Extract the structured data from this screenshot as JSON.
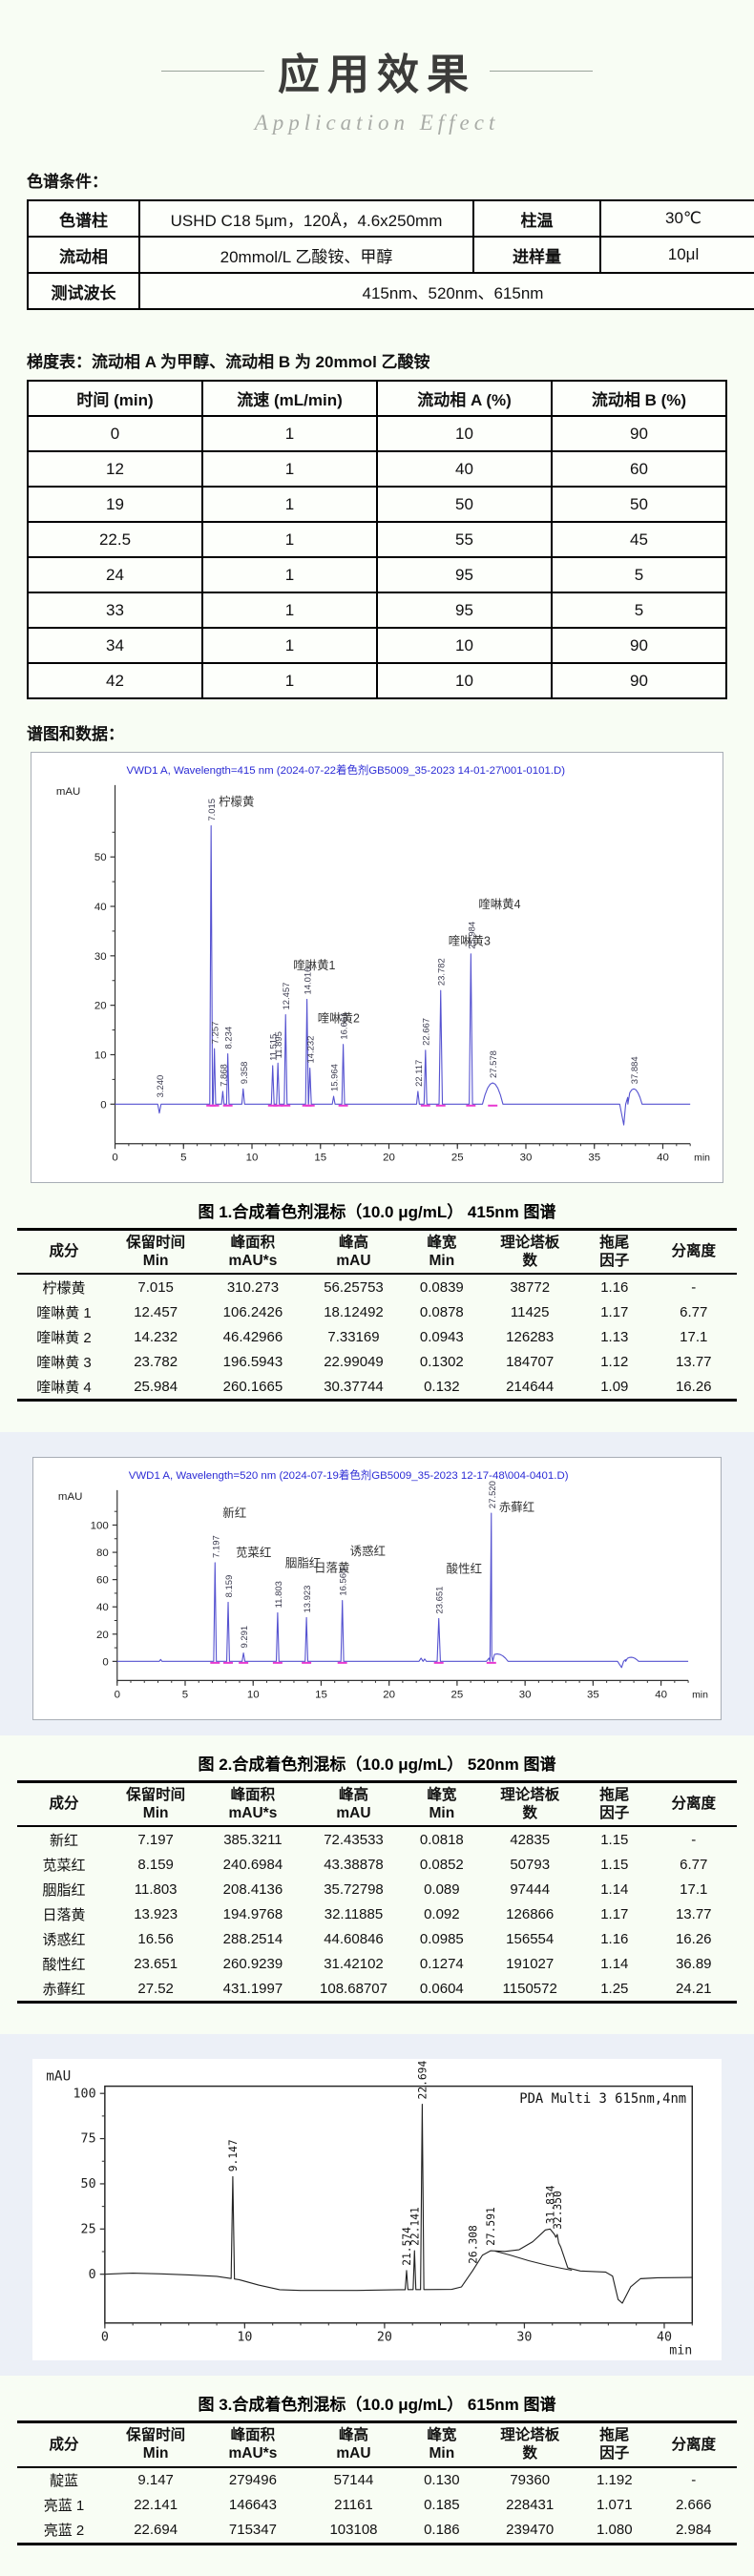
{
  "page": {
    "title": "应用效果",
    "subtitle": "Application Effect"
  },
  "sections": {
    "conditions_label": "色谱条件：",
    "gradient_caption": "梯度表：流动相 A 为甲醇、流动相 B 为 20mmol 乙酸铵",
    "spectra_label": "谱图和数据："
  },
  "conditions_table": {
    "rows": [
      {
        "label1": "色谱柱",
        "value1": "USHD C18 5μm，120Å，4.6x250mm",
        "label2": "柱温",
        "value2": "30℃"
      },
      {
        "label1": "流动相",
        "value1": "20mmol/L 乙酸铵、甲醇",
        "label2": "进样量",
        "value2": "10μl"
      },
      {
        "label1": "测试波长",
        "value1": "415nm、520nm、615nm"
      }
    ]
  },
  "gradient_table": {
    "headers": [
      "时间 (min)",
      "流速 (mL/min)",
      "流动相 A (%)",
      "流动相 B (%)"
    ],
    "rows": [
      [
        "0",
        "1",
        "10",
        "90"
      ],
      [
        "12",
        "1",
        "40",
        "60"
      ],
      [
        "19",
        "1",
        "50",
        "50"
      ],
      [
        "22.5",
        "1",
        "55",
        "45"
      ],
      [
        "24",
        "1",
        "95",
        "5"
      ],
      [
        "33",
        "1",
        "95",
        "5"
      ],
      [
        "34",
        "1",
        "10",
        "90"
      ],
      [
        "42",
        "1",
        "10",
        "90"
      ]
    ]
  },
  "peak_table_headers": [
    [
      "成分",
      ""
    ],
    [
      "保留时间",
      "Min"
    ],
    [
      "峰面积",
      "mAU*s"
    ],
    [
      "峰高",
      "mAU"
    ],
    [
      "峰宽",
      "Min"
    ],
    [
      "理论塔板",
      "数"
    ],
    [
      "拖尾",
      "因子"
    ],
    [
      "分离度",
      ""
    ]
  ],
  "figures": [
    {
      "caption": "图 1.合成着色剂混标（10.0 μg/mL） 415nm 图谱",
      "table": {
        "rows": [
          [
            "柠檬黄",
            "7.015",
            "310.273",
            "56.25753",
            "0.0839",
            "38772",
            "1.16",
            "-"
          ],
          [
            "喹啉黄 1",
            "12.457",
            "106.2426",
            "18.12492",
            "0.0878",
            "11425",
            "1.17",
            "6.77"
          ],
          [
            "喹啉黄 2",
            "14.232",
            "46.42966",
            "7.33169",
            "0.0943",
            "126283",
            "1.13",
            "17.1"
          ],
          [
            "喹啉黄 3",
            "23.782",
            "196.5943",
            "22.99049",
            "0.1302",
            "184707",
            "1.12",
            "13.77"
          ],
          [
            "喹啉黄 4",
            "25.984",
            "260.1665",
            "30.37744",
            "0.132",
            "214644",
            "1.09",
            "16.26"
          ]
        ]
      }
    },
    {
      "caption": "图 2.合成着色剂混标（10.0 μg/mL） 520nm 图谱",
      "table": {
        "rows": [
          [
            "新红",
            "7.197",
            "385.3211",
            "72.43533",
            "0.0818",
            "42835",
            "1.15",
            "-"
          ],
          [
            "苋菜红",
            "8.159",
            "240.6984",
            "43.38878",
            "0.0852",
            "50793",
            "1.15",
            "6.77"
          ],
          [
            "胭脂红",
            "11.803",
            "208.4136",
            "35.72798",
            "0.089",
            "97444",
            "1.14",
            "17.1"
          ],
          [
            "日落黄",
            "13.923",
            "194.9768",
            "32.11885",
            "0.092",
            "126866",
            "1.17",
            "13.77"
          ],
          [
            "诱惑红",
            "16.56",
            "288.2514",
            "44.60846",
            "0.0985",
            "156554",
            "1.16",
            "16.26"
          ],
          [
            "酸性红",
            "23.651",
            "260.9239",
            "31.42102",
            "0.1274",
            "191027",
            "1.14",
            "36.89"
          ],
          [
            "赤藓红",
            "27.52",
            "431.1997",
            "108.68707",
            "0.0604",
            "1150572",
            "1.25",
            "24.21"
          ]
        ]
      }
    },
    {
      "caption": "图 3.合成着色剂混标（10.0 μg/mL） 615nm 图谱",
      "table": {
        "rows": [
          [
            "靛蓝",
            "9.147",
            "279496",
            "57144",
            "0.130",
            "79360",
            "1.192",
            "-"
          ],
          [
            "亮蓝 1",
            "22.141",
            "146643",
            "21161",
            "0.185",
            "228431",
            "1.071",
            "2.666"
          ],
          [
            "亮蓝 2",
            "22.694",
            "715347",
            "103108",
            "0.186",
            "239470",
            "1.080",
            "2.984"
          ]
        ]
      }
    }
  ],
  "chart_data": [
    {
      "type": "line",
      "title": "VWD1 A, Wavelength=415 nm (2024-07-22着色剂GB5009_35-2023  14-01-27\\001-0101.D)",
      "ylabel": "mAU",
      "xlabel": "min",
      "xlim": [
        0,
        42
      ],
      "ylim": [
        -8,
        63
      ],
      "xticks": [
        0,
        5,
        10,
        15,
        20,
        25,
        30,
        35,
        40
      ],
      "yticks": [
        0,
        10,
        20,
        30,
        40,
        50
      ],
      "color": "#5552d0",
      "title_color": "#2b2bd5",
      "marker_color": "#e838d0",
      "peaks": [
        {
          "t": 3.24,
          "h": -1.8,
          "w": 0.12,
          "label": "3.240"
        },
        {
          "t": 7.015,
          "h": 56.3,
          "w": 0.1,
          "label": "7.015",
          "name": "柠檬黄"
        },
        {
          "t": 7.257,
          "h": 11.2,
          "w": 0.09,
          "label": "7.257"
        },
        {
          "t": 7.868,
          "h": 2.6,
          "w": 0.09,
          "label": "7.868"
        },
        {
          "t": 8.234,
          "h": 10.2,
          "w": 0.09,
          "label": "8.234"
        },
        {
          "t": 9.358,
          "h": 3.1,
          "w": 0.1,
          "label": "9.358"
        },
        {
          "t": 11.515,
          "h": 7.8,
          "w": 0.1,
          "label": "11.515"
        },
        {
          "t": 11.895,
          "h": 8.3,
          "w": 0.1,
          "label": "11.895"
        },
        {
          "t": 12.457,
          "h": 18.1,
          "w": 0.1,
          "label": "12.457",
          "name": "喹啉黄1"
        },
        {
          "t": 14.016,
          "h": 21.2,
          "w": 0.1,
          "label": "14.016"
        },
        {
          "t": 14.232,
          "h": 7.3,
          "w": 0.1,
          "label": "14.232",
          "name": "喹啉黄2"
        },
        {
          "t": 15.964,
          "h": 1.6,
          "w": 0.1,
          "label": "15.964"
        },
        {
          "t": 16.661,
          "h": 12.1,
          "w": 0.1,
          "label": "16.661"
        },
        {
          "t": 22.117,
          "h": 2.6,
          "w": 0.1,
          "label": "22.117"
        },
        {
          "t": 22.667,
          "h": 10.9,
          "w": 0.1,
          "label": "22.667"
        },
        {
          "t": 23.782,
          "h": 23.0,
          "w": 0.12,
          "label": "23.782",
          "name": "喹啉黄3"
        },
        {
          "t": 25.984,
          "h": 30.4,
          "w": 0.12,
          "label": "25.984",
          "name": "喹啉黄4"
        },
        {
          "t": 27.578,
          "h": 4.3,
          "w": 0.75,
          "label": "27.578"
        },
        {
          "t": 37.15,
          "h": -4.2,
          "w": 0.3
        },
        {
          "t": 37.884,
          "h": 3.1,
          "w": 0.6,
          "label": "37.884"
        }
      ]
    },
    {
      "type": "line",
      "title": "VWD1 A, Wavelength=520 nm (2024-07-19着色剂GB5009_35-2023  12-17-48\\004-0401.D)",
      "ylabel": "mAU",
      "xlabel": "min",
      "xlim": [
        0,
        42
      ],
      "ylim": [
        -14,
        120
      ],
      "xticks": [
        0,
        5,
        10,
        15,
        20,
        25,
        30,
        35,
        40
      ],
      "yticks": [
        0,
        20,
        40,
        60,
        80,
        100
      ],
      "color": "#5552d0",
      "title_color": "#2b2bd5",
      "marker_color": "#e838d0",
      "peaks": [
        {
          "t": 3.2,
          "h": 1.4,
          "w": 0.1
        },
        {
          "t": 7.197,
          "h": 72.4,
          "w": 0.1,
          "label": "7.197",
          "name": "新红"
        },
        {
          "t": 8.159,
          "h": 43.4,
          "w": 0.1,
          "label": "8.159",
          "name": "苋菜红"
        },
        {
          "t": 9.291,
          "h": 6.2,
          "w": 0.1,
          "label": "9.291"
        },
        {
          "t": 11.803,
          "h": 35.7,
          "w": 0.1,
          "label": "11.803",
          "name": "胭脂红"
        },
        {
          "t": 13.923,
          "h": 32.1,
          "w": 0.1,
          "label": "13.923",
          "name": "日落黄"
        },
        {
          "t": 16.56,
          "h": 44.6,
          "w": 0.1,
          "label": "16.560",
          "name": "诱惑红"
        },
        {
          "t": 22.35,
          "h": 2.4,
          "w": 0.15
        },
        {
          "t": 22.62,
          "h": 1.8,
          "w": 0.12
        },
        {
          "t": 23.651,
          "h": 31.4,
          "w": 0.12,
          "label": "23.651",
          "name": "酸性红"
        },
        {
          "t": 27.52,
          "h": 108.7,
          "w": 0.1,
          "label": "27.520",
          "name": "赤藓红"
        },
        {
          "t": 27.95,
          "h": 5.5,
          "w": 0.8
        },
        {
          "t": 37.1,
          "h": -4.5,
          "w": 0.3
        },
        {
          "t": 37.8,
          "h": 3.0,
          "w": 0.55
        }
      ]
    },
    {
      "type": "line",
      "right_label": "PDA Multi 3 615nm,4nm",
      "ylabel": "mAU",
      "xlabel": "min",
      "xlim": [
        0,
        42
      ],
      "ylim": [
        -27,
        104
      ],
      "xticks": [
        0,
        10,
        20,
        30,
        40
      ],
      "yticks": [
        0,
        25,
        50,
        75,
        100
      ],
      "color": "#222222",
      "box": true,
      "baseline": [
        [
          0,
          0
        ],
        [
          2,
          0.6
        ],
        [
          4,
          0.2
        ],
        [
          6,
          -0.4
        ],
        [
          8,
          -1.2
        ],
        [
          9.6,
          -3
        ],
        [
          11,
          -6
        ],
        [
          12.5,
          -8.6
        ],
        [
          14,
          -9
        ],
        [
          18,
          -9
        ],
        [
          21,
          -8.6
        ],
        [
          24.8,
          -8.4
        ],
        [
          25.5,
          -7
        ],
        [
          26.308,
          2
        ],
        [
          27.0,
          10.5
        ],
        [
          27.591,
          13
        ],
        [
          28.6,
          12.6
        ],
        [
          29.6,
          13.5
        ],
        [
          30.6,
          18
        ],
        [
          31.5,
          24.5
        ],
        [
          31.834,
          25
        ],
        [
          32.15,
          22
        ],
        [
          32.6,
          15
        ],
        [
          33.1,
          3.5
        ],
        [
          34,
          1.8
        ],
        [
          35.8,
          1.2
        ],
        [
          36.3,
          -1
        ],
        [
          36.7,
          -14
        ],
        [
          37.0,
          -16
        ],
        [
          37.6,
          -7
        ],
        [
          38.3,
          -2.5
        ],
        [
          39.5,
          -2
        ],
        [
          42,
          -1.8
        ]
      ],
      "trace2": [
        [
          27.9,
          12.8
        ],
        [
          29.0,
          10.5
        ],
        [
          30.3,
          7.5
        ],
        [
          31.6,
          5
        ],
        [
          32.7,
          3.2
        ],
        [
          33.4,
          2.2
        ]
      ],
      "peaks": [
        {
          "t": 9.147,
          "h": 54,
          "w": 0.12,
          "label": "9.147"
        },
        {
          "t": 21.574,
          "h": 2,
          "w": 0.1,
          "label": "21.574"
        },
        {
          "t": 22.141,
          "h": 13,
          "w": 0.1,
          "label": "22.141"
        },
        {
          "t": 22.694,
          "h": 94,
          "w": 0.12,
          "label": "22.694"
        },
        {
          "t": 26.308,
          "h": 3,
          "label": "26.308",
          "spike": false
        },
        {
          "t": 27.591,
          "h": 13,
          "label": "27.591",
          "spike": false
        },
        {
          "t": 31.834,
          "h": 25,
          "label": "31.834",
          "spike": false
        },
        {
          "t": 32.35,
          "h": 22,
          "w": 0.1,
          "label": "32.350"
        }
      ]
    }
  ]
}
